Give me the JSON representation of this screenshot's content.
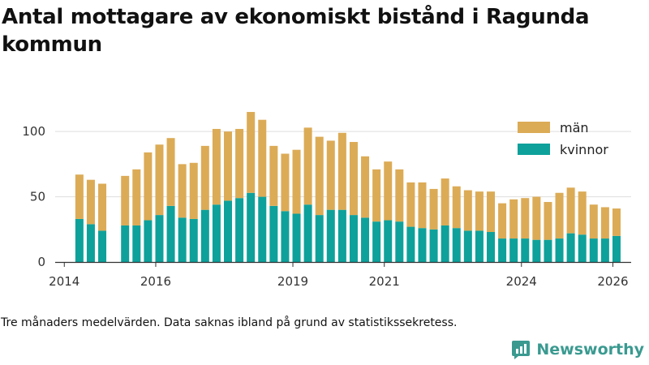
{
  "title": "Antal mottagare av ekonomiskt bistånd i Ragunda kommun",
  "caption": "Tre månaders medelvärden. Data saknas ibland på grund av statistikssekretess.",
  "brand": {
    "name": "Newsworthy"
  },
  "colors": {
    "men": "#dcab56",
    "women": "#0ea19b",
    "grid": "#dddddd",
    "axis": "#333333",
    "brand": "#3a9a90"
  },
  "chart_data": {
    "type": "bar",
    "stacked": true,
    "title": "Antal mottagare av ekonomiskt bistånd i Ragunda kommun",
    "xlabel": "",
    "ylabel": "",
    "ylim": [
      0,
      120
    ],
    "yticks": [
      0,
      50,
      100
    ],
    "xlim": [
      2013.8,
      2026.4
    ],
    "xticks": [
      {
        "value": 2014,
        "label": "2014"
      },
      {
        "value": 2016,
        "label": "2016"
      },
      {
        "value": 2019,
        "label": "2019"
      },
      {
        "value": 2021,
        "label": "2021"
      },
      {
        "value": 2024,
        "label": "2024"
      },
      {
        "value": 2026,
        "label": "2026"
      }
    ],
    "legend": {
      "position": "top-right",
      "entries": [
        "män",
        "kvinnor"
      ]
    },
    "x": [
      2014.33,
      2014.58,
      2014.83,
      2015.33,
      2015.58,
      2015.83,
      2016.08,
      2016.33,
      2016.58,
      2016.83,
      2017.08,
      2017.33,
      2017.58,
      2017.83,
      2018.08,
      2018.33,
      2018.58,
      2018.83,
      2019.08,
      2019.33,
      2019.58,
      2019.83,
      2020.08,
      2020.33,
      2020.58,
      2020.83,
      2021.08,
      2021.33,
      2021.58,
      2021.83,
      2022.08,
      2022.33,
      2022.58,
      2022.83,
      2023.08,
      2023.33,
      2023.58,
      2023.83,
      2024.08,
      2024.33,
      2024.58,
      2024.83,
      2025.08,
      2025.33,
      2025.58,
      2025.83,
      2026.08
    ],
    "series": [
      {
        "name": "kvinnor",
        "values": [
          33,
          29,
          24,
          28,
          28,
          32,
          36,
          43,
          34,
          33,
          40,
          44,
          47,
          49,
          53,
          50,
          43,
          39,
          37,
          44,
          36,
          40,
          40,
          36,
          34,
          31,
          32,
          31,
          27,
          26,
          25,
          28,
          26,
          24,
          24,
          23,
          18,
          18,
          18,
          17,
          17,
          18,
          22,
          21,
          18,
          18,
          20
        ]
      },
      {
        "name": "män",
        "values": [
          34,
          34,
          36,
          38,
          43,
          52,
          54,
          52,
          41,
          43,
          49,
          58,
          53,
          53,
          62,
          59,
          46,
          44,
          49,
          59,
          60,
          53,
          59,
          56,
          47,
          40,
          45,
          40,
          34,
          35,
          31,
          36,
          32,
          31,
          30,
          31,
          27,
          30,
          31,
          33,
          29,
          35,
          35,
          33,
          26,
          24,
          21
        ]
      }
    ]
  }
}
